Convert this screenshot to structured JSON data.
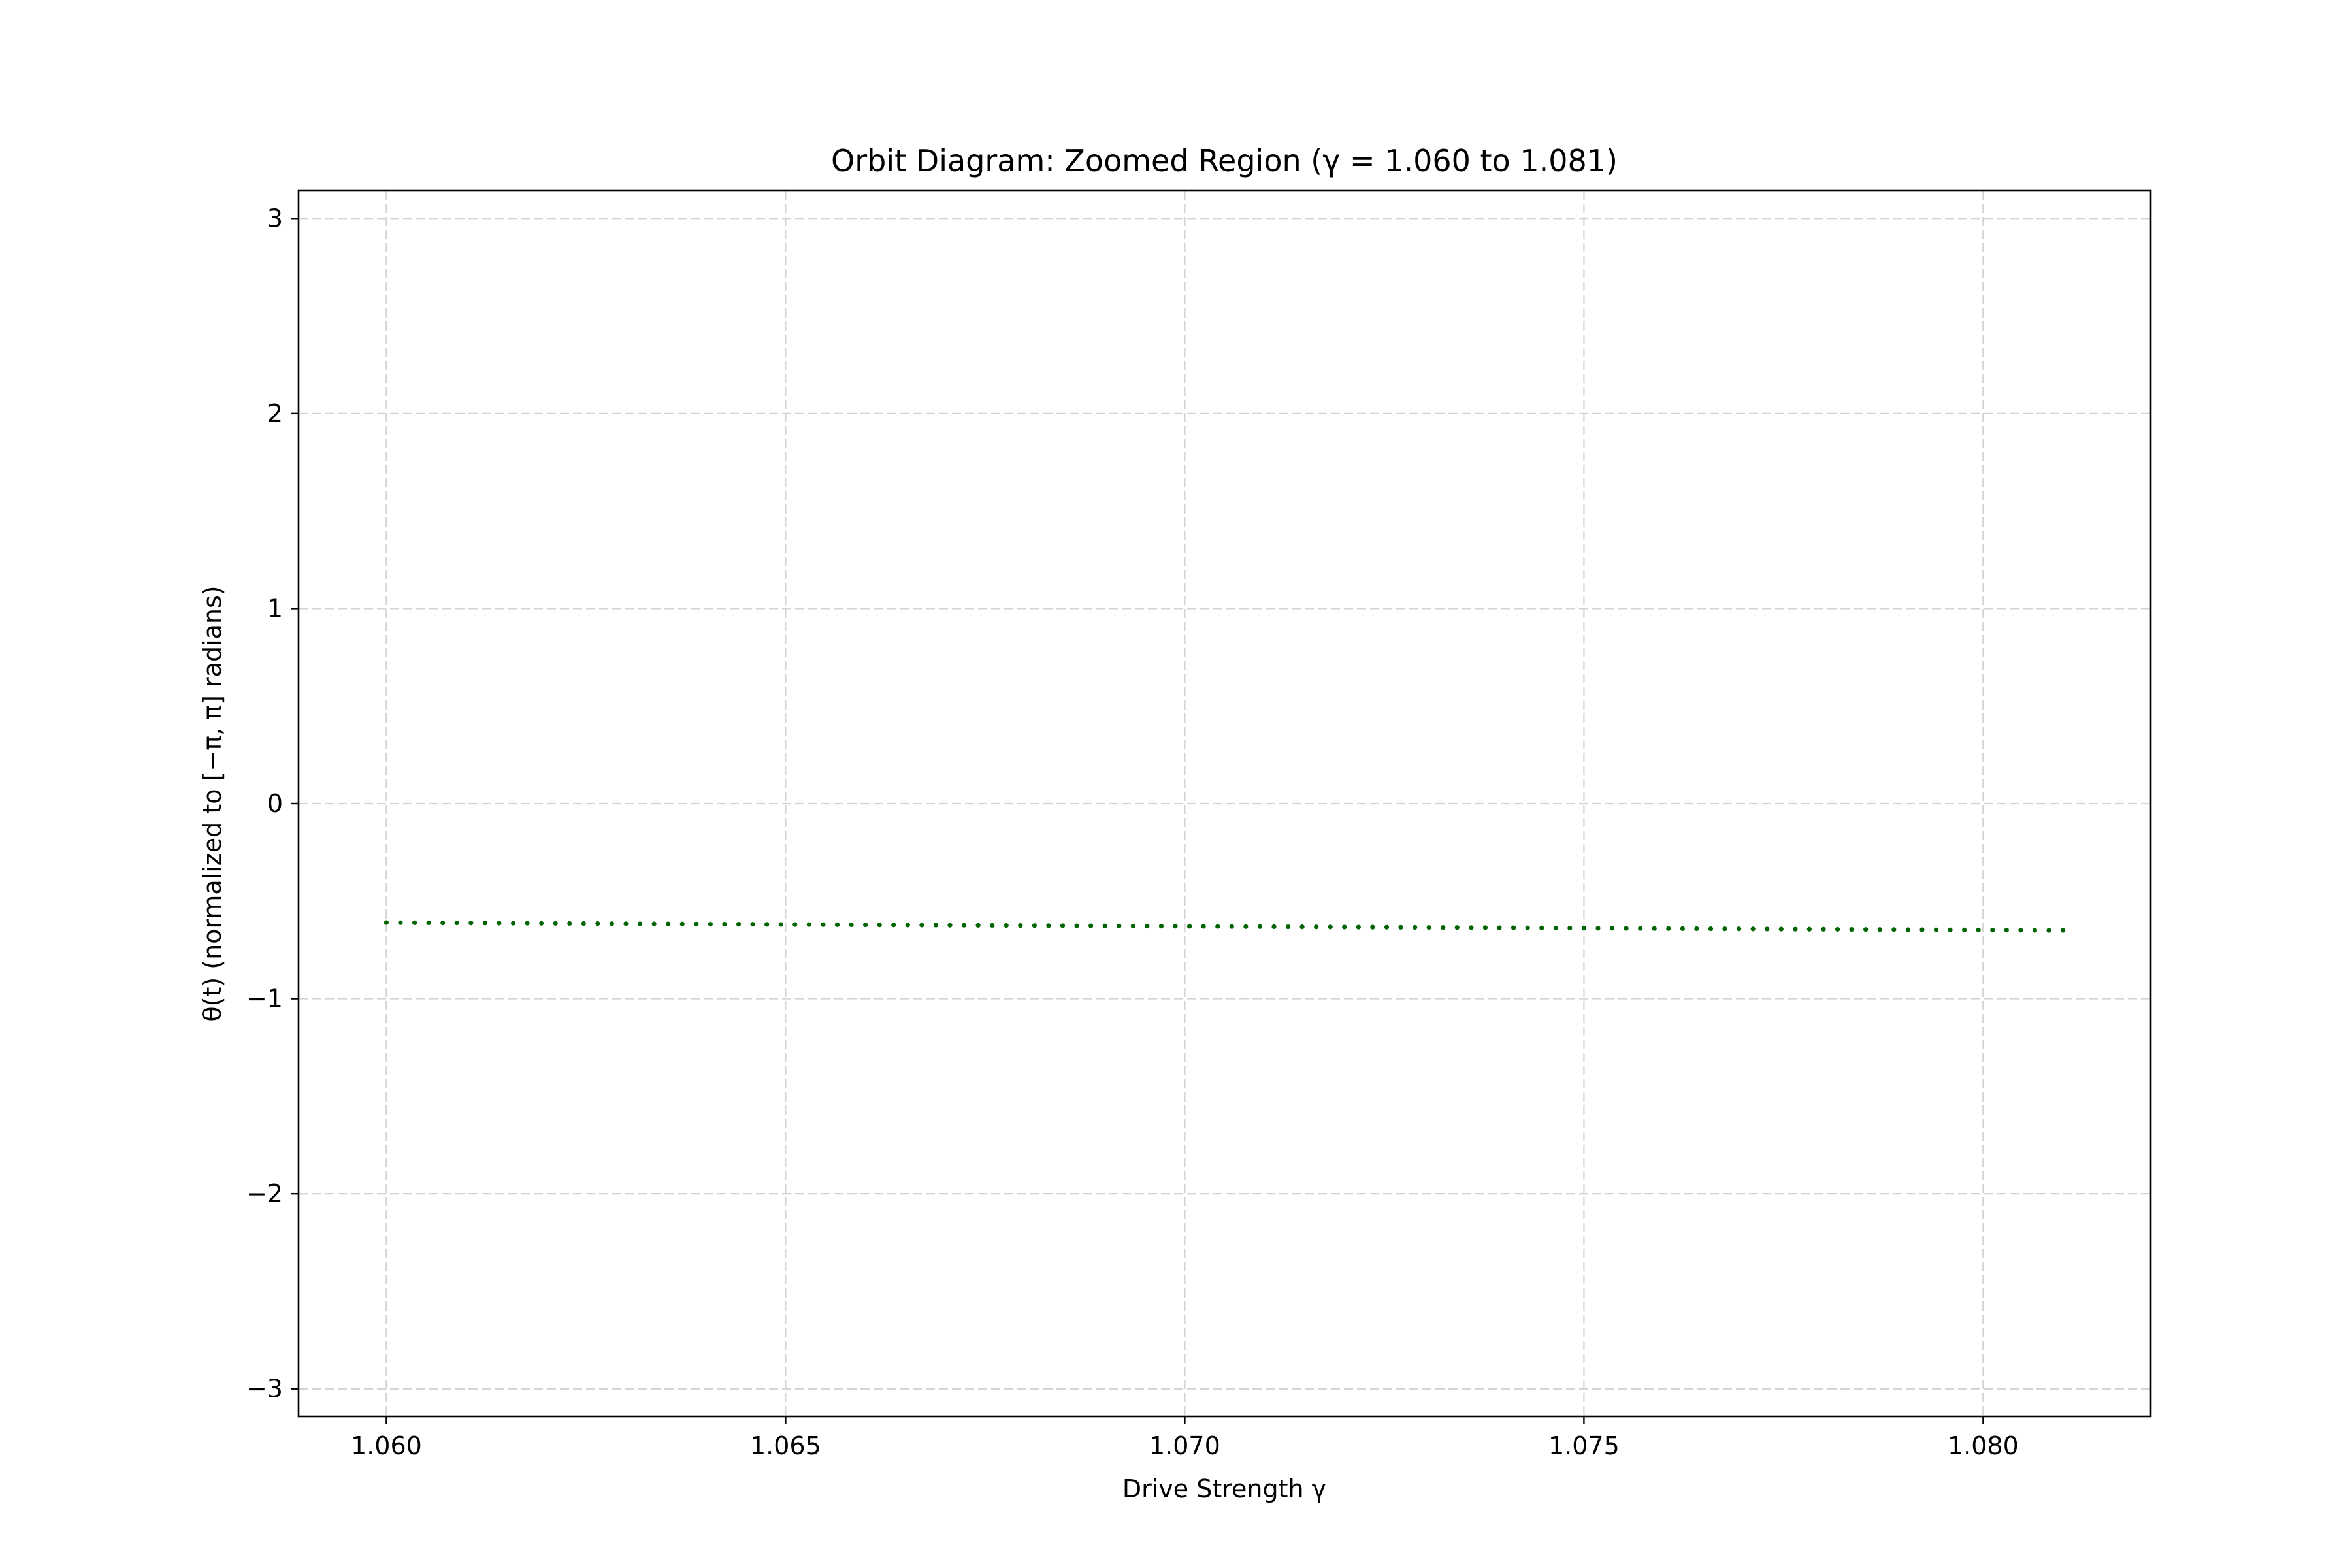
{
  "chart_data": {
    "type": "scatter",
    "title": "Orbit Diagram: Zoomed Region (γ = 1.060 to 1.081)",
    "xlabel": "Drive Strength γ",
    "ylabel": "θ(t) (normalized to [−π, π] radians)",
    "xlim": [
      1.0589,
      1.0821
    ],
    "ylim": [
      -3.1416,
      3.1416
    ],
    "x_ticks": [
      1.06,
      1.065,
      1.07,
      1.075,
      1.08
    ],
    "x_tick_labels": [
      "1.060",
      "1.065",
      "1.070",
      "1.075",
      "1.080"
    ],
    "y_ticks": [
      -3,
      -2,
      -1,
      0,
      1,
      2,
      3
    ],
    "y_tick_labels": [
      "−3",
      "−2",
      "−1",
      "0",
      "1",
      "2",
      "3"
    ],
    "grid": true,
    "marker_color": "#006400",
    "series": [
      {
        "x_start": 1.06,
        "x_end": 1.081,
        "y_start": -0.61,
        "y_end": -0.65,
        "point_count": 120
      }
    ]
  }
}
